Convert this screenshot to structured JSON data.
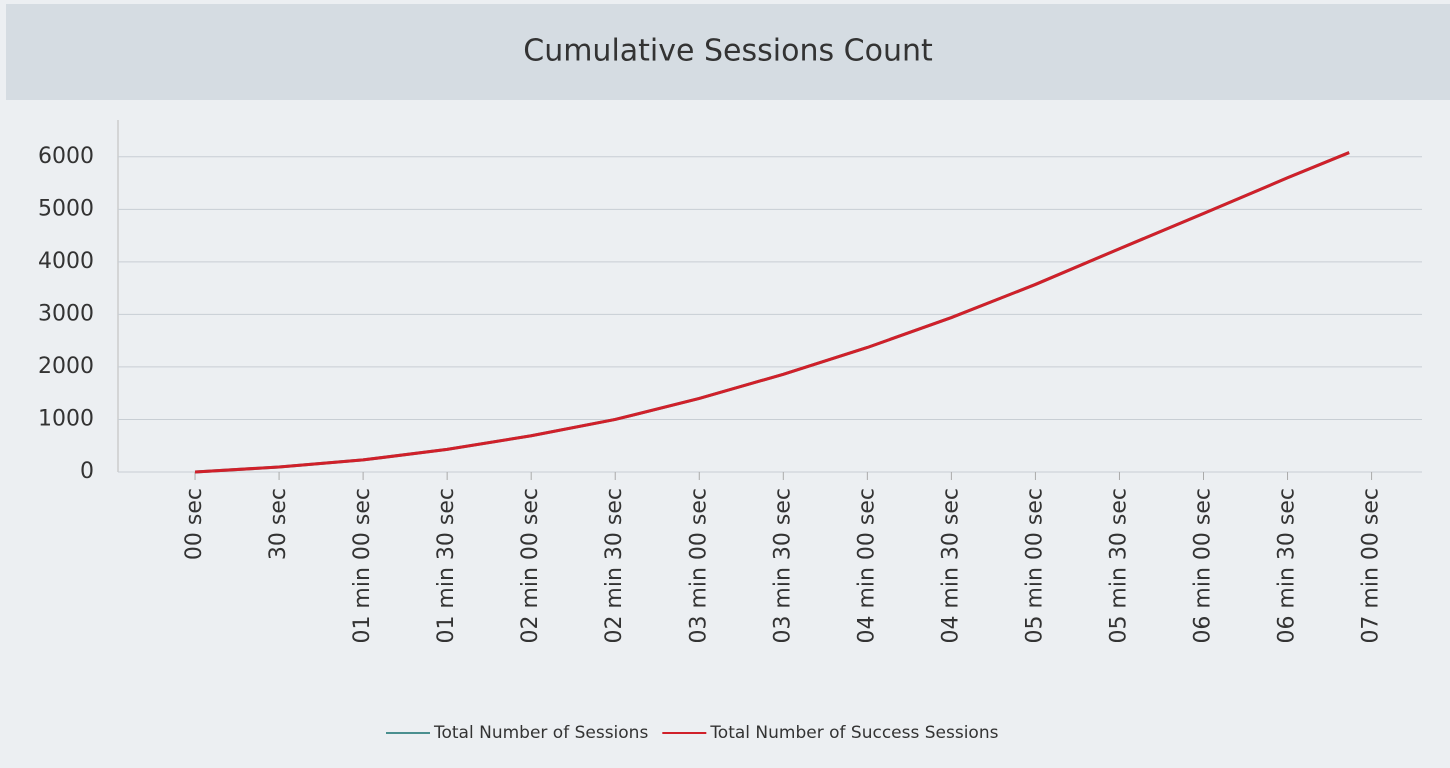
{
  "chart_data": {
    "type": "line",
    "title": "Cumulative Sessions Count",
    "x": [
      0,
      30,
      60,
      90,
      120,
      150,
      180,
      210,
      240,
      270,
      300,
      330,
      360,
      390,
      412
    ],
    "series": [
      {
        "name": "Total Number of Sessions",
        "color": "#4a8f8f",
        "values": [
          0,
          95,
          230,
          430,
          690,
          1000,
          1400,
          1860,
          2370,
          2940,
          3570,
          4250,
          4920,
          5600,
          6080
        ]
      },
      {
        "name": "Total Number of Success Sessions",
        "color": "#d0202a",
        "values": [
          0,
          95,
          230,
          430,
          690,
          1000,
          1400,
          1860,
          2370,
          2940,
          3570,
          4250,
          4920,
          5600,
          6080
        ]
      }
    ],
    "xlim": [
      -27.5,
      438
    ],
    "xticks": [
      {
        "value": 0,
        "label": "00 sec"
      },
      {
        "value": 30,
        "label": "30 sec"
      },
      {
        "value": 60,
        "label": "01 min 00 sec"
      },
      {
        "value": 90,
        "label": "01 min 30 sec"
      },
      {
        "value": 120,
        "label": "02 min 00 sec"
      },
      {
        "value": 150,
        "label": "02 min 30 sec"
      },
      {
        "value": 180,
        "label": "03 min 00 sec"
      },
      {
        "value": 210,
        "label": "03 min 30 sec"
      },
      {
        "value": 240,
        "label": "04 min 00 sec"
      },
      {
        "value": 270,
        "label": "04 min 30 sec"
      },
      {
        "value": 300,
        "label": "05 min 00 sec"
      },
      {
        "value": 330,
        "label": "05 min 30 sec"
      },
      {
        "value": 360,
        "label": "06 min 00 sec"
      },
      {
        "value": 390,
        "label": "06 min 30 sec"
      },
      {
        "value": 420,
        "label": "07 min 00 sec"
      }
    ],
    "ylim": [
      0,
      6700
    ],
    "yticks": [
      0,
      1000,
      2000,
      3000,
      4000,
      5000,
      6000
    ],
    "grid": true,
    "legend": "bottom"
  }
}
